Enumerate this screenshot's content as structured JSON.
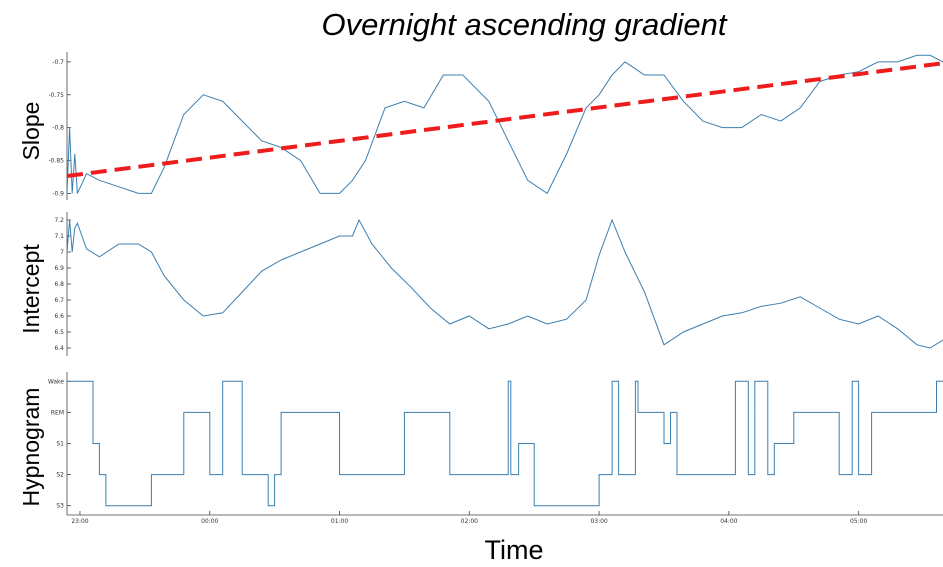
{
  "chart_data": {
    "type": "line",
    "title": "Overnight ascending gradient",
    "xlabel": "Time",
    "x_ticks": [
      "23:00",
      "00:00",
      "01:00",
      "02:00",
      "03:00",
      "04:00",
      "05:00"
    ],
    "x_range_hours": [
      -1.1,
      5.65
    ],
    "panels": [
      {
        "ylabel": "Slope",
        "ylim": [
          -0.91,
          -0.685
        ],
        "y_ticks": [
          {
            "value": -0.7,
            "label": "-0.7"
          },
          {
            "value": -0.75,
            "label": "-0.75"
          },
          {
            "value": -0.8,
            "label": "-0.8"
          },
          {
            "value": -0.85,
            "label": "-0.85"
          },
          {
            "value": -0.9,
            "label": "-0.9"
          }
        ],
        "series": {
          "x": [
            -1.1,
            -1.08,
            -1.06,
            -1.04,
            -1.02,
            -0.95,
            -0.85,
            -0.7,
            -0.55,
            -0.45,
            -0.35,
            -0.2,
            -0.05,
            0.1,
            0.25,
            0.4,
            0.55,
            0.7,
            0.85,
            1.0,
            1.1,
            1.2,
            1.35,
            1.5,
            1.65,
            1.8,
            1.95,
            2.05,
            2.15,
            2.3,
            2.45,
            2.6,
            2.75,
            2.9,
            3.0,
            3.1,
            3.2,
            3.35,
            3.5,
            3.65,
            3.8,
            3.95,
            4.1,
            4.25,
            4.4,
            4.55,
            4.7,
            4.85,
            5.0,
            5.15,
            5.3,
            5.45,
            5.55,
            5.65
          ],
          "values": [
            -0.9,
            -0.8,
            -0.9,
            -0.84,
            -0.9,
            -0.87,
            -0.88,
            -0.89,
            -0.9,
            -0.9,
            -0.86,
            -0.78,
            -0.75,
            -0.76,
            -0.79,
            -0.82,
            -0.83,
            -0.85,
            -0.9,
            -0.9,
            -0.88,
            -0.85,
            -0.77,
            -0.76,
            -0.77,
            -0.72,
            -0.72,
            -0.74,
            -0.76,
            -0.82,
            -0.88,
            -0.9,
            -0.84,
            -0.77,
            -0.75,
            -0.72,
            -0.7,
            -0.72,
            -0.72,
            -0.76,
            -0.79,
            -0.8,
            -0.8,
            -0.78,
            -0.79,
            -0.77,
            -0.73,
            -0.72,
            -0.715,
            -0.7,
            -0.7,
            -0.69,
            -0.69,
            -0.7
          ]
        },
        "trend": {
          "x": [
            -1.1,
            5.65
          ],
          "values": [
            -0.8735,
            -0.702
          ]
        }
      },
      {
        "ylabel": "Intercept",
        "ylim": [
          6.35,
          7.25
        ],
        "y_ticks": [
          {
            "value": 7.2,
            "label": "7.2"
          },
          {
            "value": 7.1,
            "label": "7.1"
          },
          {
            "value": 7.0,
            "label": "7"
          },
          {
            "value": 6.9,
            "label": "6.9"
          },
          {
            "value": 6.8,
            "label": "6.8"
          },
          {
            "value": 6.7,
            "label": "6.7"
          },
          {
            "value": 6.6,
            "label": "6.6"
          },
          {
            "value": 6.5,
            "label": "6.5"
          },
          {
            "value": 6.4,
            "label": "6.4"
          }
        ],
        "series": {
          "x": [
            -1.1,
            -1.08,
            -1.06,
            -1.04,
            -1.02,
            -0.95,
            -0.85,
            -0.7,
            -0.55,
            -0.45,
            -0.35,
            -0.2,
            -0.05,
            0.1,
            0.25,
            0.4,
            0.55,
            0.7,
            0.85,
            1.0,
            1.1,
            1.15,
            1.25,
            1.4,
            1.55,
            1.7,
            1.85,
            2.0,
            2.15,
            2.3,
            2.45,
            2.6,
            2.75,
            2.9,
            3.0,
            3.1,
            3.2,
            3.35,
            3.5,
            3.65,
            3.8,
            3.95,
            4.1,
            4.25,
            4.4,
            4.55,
            4.7,
            4.85,
            5.0,
            5.15,
            5.3,
            5.45,
            5.55,
            5.65
          ],
          "values": [
            7.0,
            7.2,
            7.0,
            7.15,
            7.18,
            7.02,
            6.97,
            7.05,
            7.05,
            7.0,
            6.85,
            6.7,
            6.6,
            6.62,
            6.75,
            6.88,
            6.95,
            7.0,
            7.05,
            7.1,
            7.1,
            7.2,
            7.05,
            6.9,
            6.78,
            6.65,
            6.55,
            6.6,
            6.52,
            6.55,
            6.6,
            6.55,
            6.58,
            6.7,
            6.98,
            7.2,
            7.0,
            6.75,
            6.42,
            6.5,
            6.55,
            6.6,
            6.62,
            6.66,
            6.68,
            6.72,
            6.65,
            6.58,
            6.55,
            6.6,
            6.52,
            6.42,
            6.4,
            6.45
          ]
        }
      },
      {
        "ylabel": "Hypnogram",
        "type": "step",
        "y_ticks": [
          {
            "value": 4,
            "label": "Wake"
          },
          {
            "value": 3,
            "label": "REM"
          },
          {
            "value": 2,
            "label": "S1"
          },
          {
            "value": 1,
            "label": "S2"
          },
          {
            "value": 0,
            "label": "S3"
          }
        ],
        "ylim": [
          -0.3,
          4.3
        ],
        "series": {
          "x": [
            -1.1,
            -0.9,
            -0.9,
            -0.85,
            -0.85,
            -0.8,
            -0.8,
            -0.45,
            -0.45,
            -0.2,
            -0.2,
            0.0,
            0.0,
            0.1,
            0.1,
            0.25,
            0.25,
            0.45,
            0.45,
            0.5,
            0.5,
            0.55,
            0.55,
            1.0,
            1.0,
            1.5,
            1.5,
            1.85,
            1.85,
            2.3,
            2.3,
            2.32,
            2.32,
            2.38,
            2.38,
            2.5,
            2.5,
            3.0,
            3.0,
            3.1,
            3.1,
            3.15,
            3.15,
            3.28,
            3.28,
            3.3,
            3.3,
            3.5,
            3.5,
            3.55,
            3.55,
            3.6,
            3.6,
            4.05,
            4.05,
            4.15,
            4.15,
            4.2,
            4.2,
            4.3,
            4.3,
            4.35,
            4.35,
            4.5,
            4.5,
            4.85,
            4.85,
            4.95,
            4.95,
            5.0,
            5.0,
            5.1,
            5.1,
            5.6,
            5.6,
            5.65
          ],
          "values": [
            4,
            4,
            2,
            2,
            1,
            1,
            0,
            0,
            1,
            1,
            3,
            3,
            1,
            1,
            4,
            4,
            1,
            1,
            0,
            0,
            1,
            1,
            3,
            3,
            1,
            1,
            3,
            3,
            1,
            1,
            4,
            4,
            1,
            1,
            2,
            2,
            0,
            0,
            1,
            1,
            4,
            4,
            1,
            1,
            4,
            4,
            3,
            3,
            2,
            2,
            3,
            3,
            1,
            1,
            4,
            4,
            1,
            1,
            4,
            4,
            1,
            1,
            2,
            2,
            3,
            3,
            1,
            1,
            4,
            4,
            1,
            1,
            3,
            3,
            4,
            4
          ]
        }
      }
    ]
  }
}
